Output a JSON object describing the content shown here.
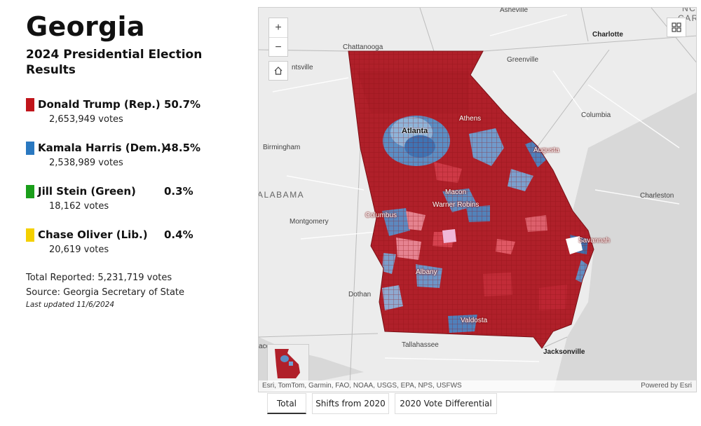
{
  "title": "Georgia",
  "subtitle": "2024 Presidential Election Results",
  "candidates": [
    {
      "name": "Donald Trump (Rep.)",
      "pct": "50.7%",
      "votes": "2,653,949 votes",
      "color": "#c0151b"
    },
    {
      "name": "Kamala Harris (Dem.)",
      "pct": "48.5%",
      "votes": "2,538,989 votes",
      "color": "#2a78c0"
    },
    {
      "name": "Jill Stein (Green)",
      "pct": "0.3%",
      "votes": "18,162 votes",
      "color": "#1a9e1a"
    },
    {
      "name": "Chase Oliver (Lib.)",
      "pct": "0.4%",
      "votes": "20,619 votes",
      "color": "#f4d000"
    }
  ],
  "total_reported": "Total Reported: 5,231,719 votes",
  "source": "Source: Georgia Secretary of State",
  "last_updated": "Last updated 11/6/2024",
  "map": {
    "zoom_in": "+",
    "zoom_out": "−",
    "home_icon": "home-icon",
    "basemap_icon": "basemap-gallery-icon",
    "attribution": "Esri, TomTom, Garmin, FAO, NOAA, USGS, EPA, NPS, USFWS",
    "powered_by": "Powered by Esri",
    "places": {
      "asheville": "Asheville",
      "nc": "NC",
      "carolina": "CARO",
      "charlotte": "Charlotte",
      "chattanooga": "Chattanooga",
      "huntsville": "ntsville",
      "greenville": "Greenville",
      "columbia": "Columbia",
      "birmingham": "Birmingham",
      "atlanta": "Atlanta",
      "athens": "Athens",
      "augusta": "Augusta",
      "alabama": "ALABAMA",
      "charleston": "Charleston",
      "macon": "Macon",
      "warner_robins": "Warner Robins",
      "columbus": "Columbus",
      "montgomery": "Montgomery",
      "savannah": "Savannah",
      "albany": "Albany",
      "dothan": "Dothan",
      "valdosta": "Valdosta",
      "tallahassee": "Tallahassee",
      "jacksonville": "Jacksonville",
      "aco": "aco"
    }
  },
  "tabs": [
    {
      "label": "Total",
      "active": true
    },
    {
      "label": "Shifts from 2020",
      "active": false
    },
    {
      "label": "2020 Vote Differential",
      "active": false
    }
  ]
}
